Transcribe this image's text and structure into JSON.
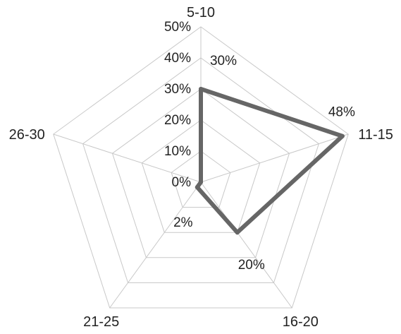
{
  "chart_data": {
    "type": "radar",
    "categories": [
      "5-10",
      "11-15",
      "16-20",
      "21-25",
      "26-30"
    ],
    "series": [
      {
        "values": [
          30,
          48,
          20,
          2,
          0
        ],
        "color": "#666666"
      }
    ],
    "value_labels": [
      "30%",
      "48%",
      "20%",
      "2%",
      ""
    ],
    "rlim": [
      0,
      50
    ],
    "ticks": [
      0,
      10,
      20,
      30,
      40,
      50
    ],
    "tick_labels": [
      "0%",
      "10%",
      "20%",
      "30%",
      "40%",
      "50%"
    ],
    "grid": true,
    "legend": "none",
    "grid_color": "#c8c8c8"
  }
}
